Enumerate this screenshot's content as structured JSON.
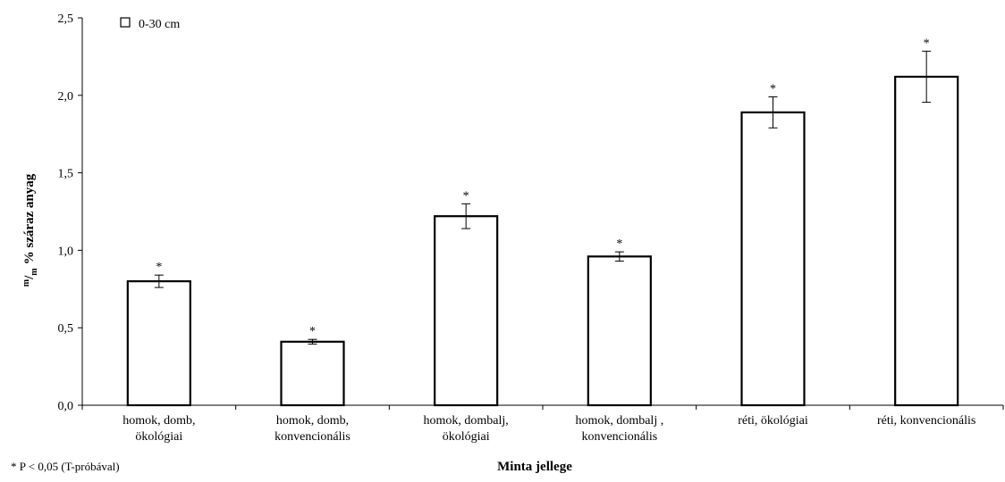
{
  "chart_data": {
    "type": "bar",
    "categories": [
      [
        "homok, domb,",
        "ökológiai"
      ],
      [
        "homok, domb,",
        "konvencionális"
      ],
      [
        "homok, dombalj,",
        "ökológiai"
      ],
      [
        "homok, dombalj ,",
        "konvencionális"
      ],
      [
        "réti, ökológiai"
      ],
      [
        "réti, konvencionális"
      ]
    ],
    "series": [
      {
        "name": "0-30 cm",
        "values": [
          0.8,
          0.41,
          1.22,
          0.96,
          1.89,
          2.12
        ],
        "errors": [
          0.04,
          0.015,
          0.08,
          0.03,
          0.1,
          0.165
        ],
        "markers": [
          "*",
          "*",
          "*",
          "*",
          "*",
          "*"
        ]
      }
    ],
    "ylim": [
      0,
      2.5
    ],
    "yticks": [
      "0,0",
      "0,5",
      "1,0",
      "1,5",
      "2,0",
      "2,5"
    ],
    "ytick_values": [
      0,
      0.5,
      1.0,
      1.5,
      2.0,
      2.5
    ],
    "xlabel": "Minta jellege",
    "ylabel": {
      "main": "% száraz anyag",
      "m_sup": "m",
      "slash": "/",
      "m_sub": "m"
    },
    "legend_position": "top-left",
    "footnote": "* P < 0,05 (T-próbával)",
    "bar_fill": "#ffffff",
    "bar_stroke": "#000000"
  }
}
